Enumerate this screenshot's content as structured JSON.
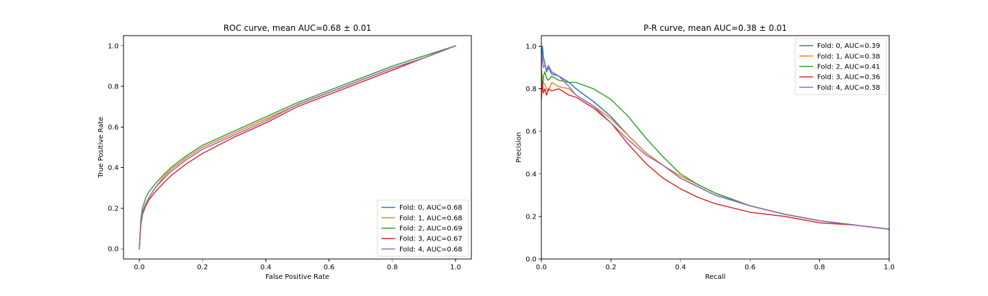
{
  "chart_data": [
    {
      "type": "line",
      "title": "ROC curve, mean AUC=0.68 ± 0.01",
      "xlabel": "False Positive Rate",
      "ylabel": "True Positive Rate",
      "xlim": [
        -0.05,
        1.05
      ],
      "ylim": [
        -0.05,
        1.05
      ],
      "xticks": [
        0.0,
        0.2,
        0.4,
        0.6,
        0.8,
        1.0
      ],
      "xtick_labels": [
        "0.0",
        "0.2",
        "0.4",
        "0.6",
        "0.8",
        "1.0"
      ],
      "yticks": [
        0.0,
        0.2,
        0.4,
        0.6,
        0.8,
        1.0
      ],
      "ytick_labels": [
        "0.0",
        "0.2",
        "0.4",
        "0.6",
        "0.8",
        "1.0"
      ],
      "grid": false,
      "legend_position": "lower-right",
      "series": [
        {
          "name": "Fold: 0, AUC=0.68",
          "color": "#1f77b4",
          "x": [
            0,
            0.005,
            0.01,
            0.02,
            0.03,
            0.05,
            0.08,
            0.1,
            0.15,
            0.2,
            0.3,
            0.4,
            0.5,
            0.6,
            0.7,
            0.8,
            0.9,
            1.0
          ],
          "y": [
            0,
            0.13,
            0.18,
            0.22,
            0.25,
            0.3,
            0.36,
            0.39,
            0.45,
            0.5,
            0.57,
            0.64,
            0.71,
            0.77,
            0.83,
            0.89,
            0.94,
            1.0
          ]
        },
        {
          "name": "Fold: 1, AUC=0.68",
          "color": "#ff7f0e",
          "x": [
            0,
            0.005,
            0.01,
            0.02,
            0.03,
            0.05,
            0.08,
            0.1,
            0.15,
            0.2,
            0.3,
            0.4,
            0.5,
            0.6,
            0.7,
            0.8,
            0.9,
            1.0
          ],
          "y": [
            0,
            0.12,
            0.17,
            0.22,
            0.25,
            0.3,
            0.36,
            0.39,
            0.45,
            0.5,
            0.57,
            0.64,
            0.71,
            0.77,
            0.83,
            0.89,
            0.94,
            1.0
          ]
        },
        {
          "name": "Fold: 2, AUC=0.69",
          "color": "#2ca02c",
          "x": [
            0,
            0.005,
            0.01,
            0.02,
            0.03,
            0.05,
            0.08,
            0.1,
            0.15,
            0.2,
            0.3,
            0.4,
            0.5,
            0.6,
            0.7,
            0.8,
            0.9,
            1.0
          ],
          "y": [
            0,
            0.15,
            0.2,
            0.25,
            0.28,
            0.32,
            0.37,
            0.4,
            0.46,
            0.51,
            0.58,
            0.65,
            0.72,
            0.78,
            0.84,
            0.9,
            0.95,
            1.0
          ]
        },
        {
          "name": "Fold: 3, AUC=0.67",
          "color": "#d62728",
          "x": [
            0,
            0.005,
            0.01,
            0.02,
            0.03,
            0.05,
            0.08,
            0.1,
            0.15,
            0.2,
            0.3,
            0.4,
            0.5,
            0.6,
            0.7,
            0.8,
            0.9,
            1.0
          ],
          "y": [
            0,
            0.12,
            0.17,
            0.21,
            0.24,
            0.28,
            0.33,
            0.36,
            0.42,
            0.47,
            0.55,
            0.62,
            0.7,
            0.76,
            0.82,
            0.88,
            0.94,
            1.0
          ]
        },
        {
          "name": "Fold: 4, AUC=0.68",
          "color": "#9467bd",
          "x": [
            0,
            0.005,
            0.01,
            0.02,
            0.03,
            0.05,
            0.08,
            0.1,
            0.15,
            0.2,
            0.3,
            0.4,
            0.5,
            0.6,
            0.7,
            0.8,
            0.9,
            1.0
          ],
          "y": [
            0,
            0.13,
            0.18,
            0.22,
            0.25,
            0.3,
            0.35,
            0.38,
            0.44,
            0.49,
            0.56,
            0.63,
            0.71,
            0.77,
            0.83,
            0.89,
            0.94,
            1.0
          ]
        }
      ]
    },
    {
      "type": "line",
      "title": "P-R curve, mean AUC=0.38 ± 0.01",
      "xlabel": "Recall",
      "ylabel": "Precision",
      "xlim": [
        0.0,
        1.0
      ],
      "ylim": [
        0.0,
        1.05
      ],
      "xticks": [
        0.0,
        0.2,
        0.4,
        0.6,
        0.8,
        1.0
      ],
      "xtick_labels": [
        "0.0",
        "0.2",
        "0.4",
        "0.6",
        "0.8",
        "1.0"
      ],
      "yticks": [
        0.0,
        0.2,
        0.4,
        0.6,
        0.8,
        1.0
      ],
      "ytick_labels": [
        "0.0",
        "0.2",
        "0.4",
        "0.6",
        "0.8",
        "1.0"
      ],
      "grid": false,
      "legend_position": "top-right",
      "series": [
        {
          "name": "Fold: 0, AUC=0.39",
          "color": "#1f77b4",
          "x": [
            0,
            0.003,
            0.006,
            0.01,
            0.015,
            0.02,
            0.03,
            0.05,
            0.08,
            0.1,
            0.15,
            0.2,
            0.25,
            0.3,
            0.35,
            0.4,
            0.45,
            0.5,
            0.6,
            0.7,
            0.8,
            0.9,
            1.0
          ],
          "y": [
            0.9,
            1.0,
            0.95,
            0.92,
            0.88,
            0.9,
            0.87,
            0.86,
            0.83,
            0.8,
            0.74,
            0.67,
            0.58,
            0.5,
            0.44,
            0.38,
            0.34,
            0.3,
            0.25,
            0.21,
            0.18,
            0.16,
            0.14
          ]
        },
        {
          "name": "Fold: 1, AUC=0.38",
          "color": "#ff7f0e",
          "x": [
            0,
            0.003,
            0.006,
            0.01,
            0.015,
            0.02,
            0.03,
            0.05,
            0.08,
            0.1,
            0.15,
            0.2,
            0.25,
            0.3,
            0.35,
            0.4,
            0.45,
            0.5,
            0.6,
            0.7,
            0.8,
            0.9,
            1.0
          ],
          "y": [
            0.9,
            0.85,
            0.83,
            0.82,
            0.8,
            0.79,
            0.83,
            0.81,
            0.8,
            0.77,
            0.72,
            0.66,
            0.58,
            0.5,
            0.44,
            0.39,
            0.35,
            0.31,
            0.25,
            0.21,
            0.18,
            0.16,
            0.14
          ]
        },
        {
          "name": "Fold: 2, AUC=0.41",
          "color": "#2ca02c",
          "x": [
            0,
            0.003,
            0.006,
            0.01,
            0.015,
            0.02,
            0.03,
            0.05,
            0.08,
            0.1,
            0.15,
            0.2,
            0.25,
            0.3,
            0.35,
            0.4,
            0.45,
            0.5,
            0.6,
            0.7,
            0.8,
            0.9,
            1.0
          ],
          "y": [
            0.88,
            0.8,
            0.86,
            0.88,
            0.85,
            0.84,
            0.86,
            0.84,
            0.83,
            0.83,
            0.8,
            0.75,
            0.67,
            0.57,
            0.48,
            0.4,
            0.35,
            0.31,
            0.25,
            0.21,
            0.18,
            0.16,
            0.14
          ]
        },
        {
          "name": "Fold: 3, AUC=0.36",
          "color": "#d62728",
          "x": [
            0,
            0.003,
            0.006,
            0.01,
            0.015,
            0.02,
            0.03,
            0.05,
            0.08,
            0.1,
            0.15,
            0.2,
            0.25,
            0.3,
            0.35,
            0.4,
            0.45,
            0.5,
            0.6,
            0.7,
            0.8,
            0.9,
            1.0
          ],
          "y": [
            0.75,
            0.83,
            0.78,
            0.8,
            0.77,
            0.8,
            0.79,
            0.8,
            0.77,
            0.76,
            0.71,
            0.64,
            0.54,
            0.45,
            0.38,
            0.33,
            0.29,
            0.26,
            0.22,
            0.2,
            0.17,
            0.16,
            0.14
          ]
        },
        {
          "name": "Fold: 4, AUC=0.38",
          "color": "#9467bd",
          "x": [
            0,
            0.003,
            0.006,
            0.01,
            0.015,
            0.02,
            0.03,
            0.05,
            0.08,
            0.1,
            0.15,
            0.2,
            0.25,
            0.3,
            0.35,
            0.4,
            0.45,
            0.5,
            0.6,
            0.7,
            0.8,
            0.9,
            1.0
          ],
          "y": [
            0.92,
            0.95,
            0.9,
            0.91,
            0.89,
            0.91,
            0.88,
            0.86,
            0.81,
            0.77,
            0.72,
            0.64,
            0.56,
            0.49,
            0.44,
            0.38,
            0.34,
            0.3,
            0.25,
            0.21,
            0.18,
            0.16,
            0.14
          ]
        }
      ]
    }
  ]
}
